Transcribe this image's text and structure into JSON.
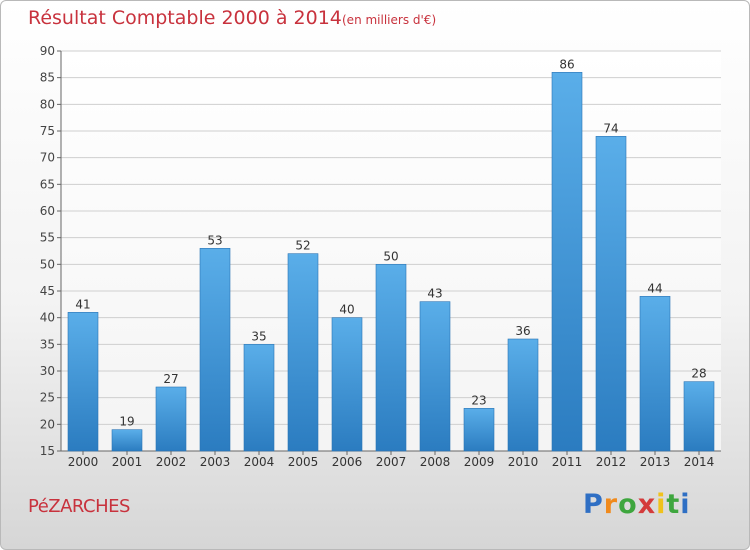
{
  "header": {
    "title": "Résultat Comptable 2000 à 2014",
    "subtitle": "(en milliers d'€)"
  },
  "footer": {
    "commune": "PéZARCHES",
    "brand_letters": [
      "P",
      "r",
      "o",
      "x",
      "i",
      "t",
      "i"
    ],
    "brand_colors": [
      "#2f6fc4",
      "#f08a1c",
      "#3ea63e",
      "#d43b3b",
      "#f0c21c",
      "#3ea63e",
      "#2f6fc4"
    ]
  },
  "colors": {
    "bar_light": "#5aaee9",
    "bar_dark": "#2b7cc0",
    "title": "#c8323d",
    "grid": "#cfcfcf"
  },
  "chart_data": {
    "type": "bar",
    "title": "Résultat Comptable 2000 à 2014",
    "subtitle": "(en milliers d'€)",
    "categories": [
      "2000",
      "2001",
      "2002",
      "2003",
      "2004",
      "2005",
      "2006",
      "2007",
      "2008",
      "2009",
      "2010",
      "2011",
      "2012",
      "2013",
      "2014"
    ],
    "values": [
      41,
      19,
      27,
      53,
      35,
      52,
      40,
      50,
      43,
      23,
      36,
      86,
      74,
      44,
      28
    ],
    "ylim": [
      15,
      90
    ],
    "yticks": [
      15,
      20,
      25,
      30,
      35,
      40,
      45,
      50,
      55,
      60,
      65,
      70,
      75,
      80,
      85,
      90
    ],
    "grid": true,
    "data_labels": true
  }
}
